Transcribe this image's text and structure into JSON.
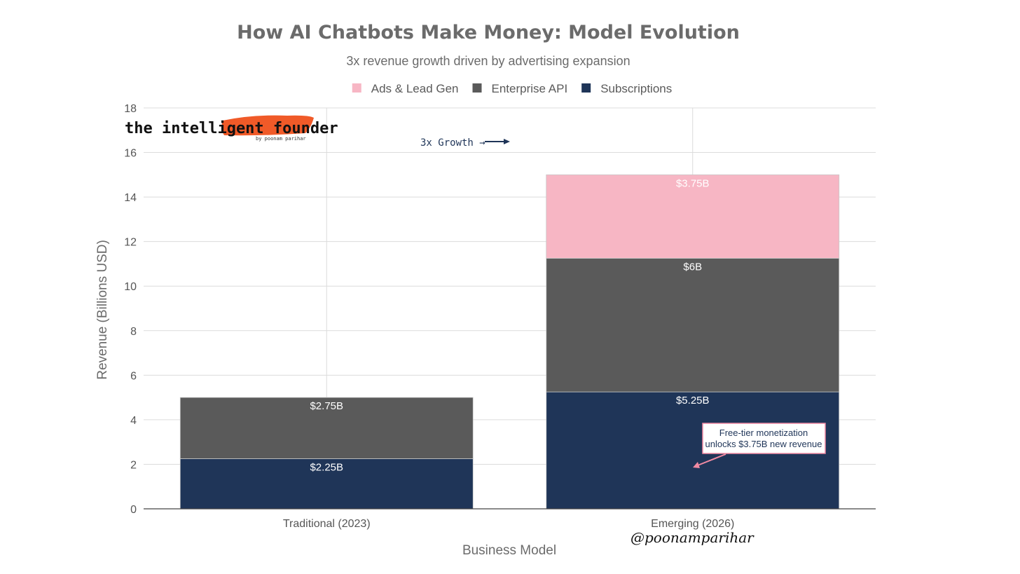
{
  "chart_data": {
    "type": "bar",
    "stacked": true,
    "title": "How AI Chatbots Make Money: Model Evolution",
    "subtitle": "3x revenue growth driven by advertising expansion",
    "xlabel": "Business Model",
    "ylabel": "Revenue (Billions USD)",
    "ylim": [
      0,
      18
    ],
    "yticks": [
      0,
      2,
      4,
      6,
      8,
      10,
      12,
      14,
      16,
      18
    ],
    "grid": true,
    "legend_position": "top",
    "categories": [
      "Traditional (2023)",
      "Emerging (2026)"
    ],
    "series": [
      {
        "name": "Subscriptions",
        "color": "#1f3558",
        "values": [
          2.25,
          5.25
        ],
        "labels": [
          "$2.25B",
          "$5.25B"
        ]
      },
      {
        "name": "Enterprise API",
        "color": "#5a5a5a",
        "values": [
          2.75,
          6
        ],
        "labels": [
          "$2.75B",
          "$6B"
        ]
      },
      {
        "name": "Ads & Lead Gen",
        "color": "#f7b6c4",
        "values": [
          0,
          3.75
        ],
        "labels": [
          "",
          "$3.75B"
        ]
      }
    ],
    "legend_order": [
      "Ads & Lead Gen",
      "Enterprise API",
      "Subscriptions"
    ],
    "annotations": {
      "growth": "3x Growth →",
      "callout_line1": "Free-tier monetization",
      "callout_line2": "unlocks $3.75B new revenue"
    }
  },
  "branding": {
    "logo_text": "the intelligent founder",
    "logo_subtext": "by poonam parihar",
    "logo_color": "#f05a28",
    "handle": "@poonamparihar"
  }
}
